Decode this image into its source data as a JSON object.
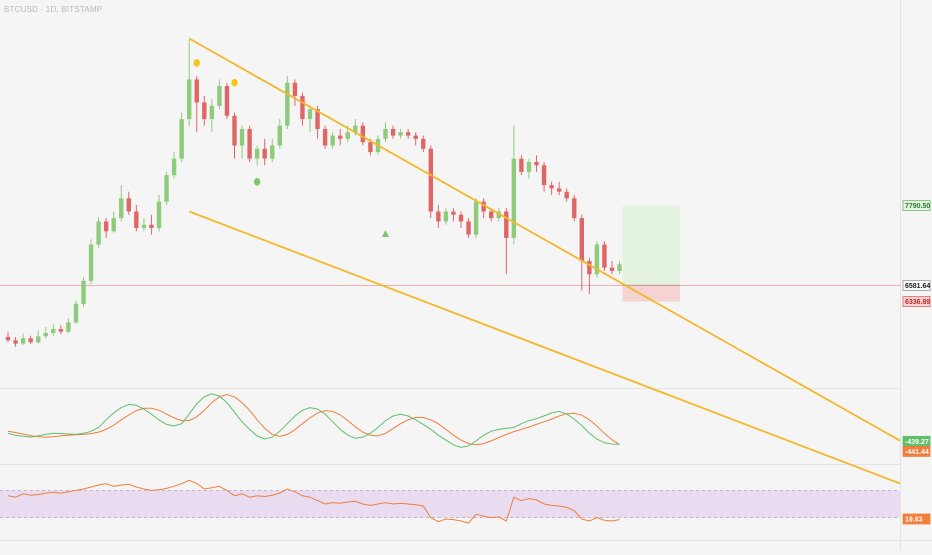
{
  "symbol_title": "BTCUSD · 1D, BITSTAMP",
  "colors": {
    "background": "#f5f5f5",
    "bull": "#8fcb7c",
    "bear": "#e06666",
    "channel": "#f5b728",
    "signal_circle": "#f5c518",
    "signal_green": "#7cc56a",
    "price_line": "#e89a9a",
    "target_zone": "#e3f3e0",
    "stop_zone": "#f6d3d3",
    "macd_line": "#5fbf6a",
    "signal_line": "#f07f3c",
    "rsi_line": "#f07f3c",
    "rsi_band": "#e9dcf0",
    "rsi_band_border": "#b9a4c8"
  },
  "price_panel": {
    "current_price_label": "6581.64",
    "target_label": "7790.50",
    "stop_label": "6336.89",
    "axis_tick_labels": []
  },
  "macd_panel": {
    "macd_value_label": "-439.27",
    "signal_value_label": "-441.44"
  },
  "rsi_panel": {
    "rsi_value_label": "19.63"
  },
  "chart_data": {
    "type": "candlestick",
    "title": "",
    "ylim": [
      5300,
      10600
    ],
    "candles": [
      [
        5800,
        5750,
        5880,
        5720
      ],
      [
        5750,
        5700,
        5800,
        5650
      ],
      [
        5700,
        5780,
        5850,
        5680
      ],
      [
        5780,
        5720,
        5820,
        5690
      ],
      [
        5720,
        5810,
        5900,
        5700
      ],
      [
        5810,
        5860,
        5950,
        5780
      ],
      [
        5860,
        5920,
        5990,
        5820
      ],
      [
        5920,
        5880,
        5980,
        5840
      ],
      [
        5880,
        6020,
        6080,
        5860
      ],
      [
        6020,
        6300,
        6350,
        6000
      ],
      [
        6300,
        6650,
        6700,
        6250
      ],
      [
        6650,
        7200,
        7280,
        6600
      ],
      [
        7200,
        7550,
        7620,
        7150
      ],
      [
        7550,
        7400,
        7600,
        7300
      ],
      [
        7400,
        7600,
        7700,
        7380
      ],
      [
        7600,
        7900,
        8100,
        7550
      ],
      [
        7900,
        7700,
        8000,
        7650
      ],
      [
        7700,
        7450,
        7800,
        7400
      ],
      [
        7450,
        7500,
        7600,
        7400
      ],
      [
        7500,
        7450,
        7650,
        7350
      ],
      [
        7450,
        7850,
        7950,
        7400
      ],
      [
        7850,
        8250,
        8300,
        7800
      ],
      [
        8250,
        8500,
        8600,
        8200
      ],
      [
        8500,
        9100,
        9200,
        8450
      ],
      [
        9100,
        9700,
        10300,
        9000
      ],
      [
        9700,
        9350,
        9750,
        8900
      ],
      [
        9350,
        9100,
        9450,
        9000
      ],
      [
        9100,
        9300,
        9400,
        8900
      ],
      [
        9300,
        9600,
        9700,
        9250
      ],
      [
        9600,
        9150,
        9650,
        9100
      ],
      [
        9150,
        8700,
        9200,
        8500
      ],
      [
        8700,
        8950,
        9000,
        8500
      ],
      [
        8950,
        8500,
        9000,
        8450
      ],
      [
        8500,
        8650,
        8700,
        8400
      ],
      [
        8650,
        8500,
        8800,
        8400
      ],
      [
        8500,
        8700,
        8800,
        8450
      ],
      [
        8700,
        9000,
        9100,
        8650
      ],
      [
        9000,
        9650,
        9750,
        8950
      ],
      [
        9650,
        9450,
        9700,
        9300
      ],
      [
        9450,
        9100,
        9500,
        9000
      ],
      [
        9100,
        9250,
        9300,
        8900
      ],
      [
        9250,
        8950,
        9300,
        8800
      ],
      [
        8950,
        8700,
        9000,
        8650
      ],
      [
        8700,
        8850,
        8900,
        8650
      ],
      [
        8850,
        8800,
        8950,
        8700
      ],
      [
        8800,
        8900,
        9000,
        8750
      ],
      [
        8900,
        9000,
        9100,
        8850
      ],
      [
        9000,
        8750,
        9050,
        8700
      ],
      [
        8750,
        8600,
        8800,
        8550
      ],
      [
        8600,
        8800,
        8850,
        8550
      ],
      [
        8800,
        8950,
        9050,
        8750
      ],
      [
        8950,
        8850,
        9000,
        8800
      ],
      [
        8850,
        8900,
        8950,
        8800
      ],
      [
        8900,
        8850,
        8950,
        8800
      ],
      [
        8850,
        8800,
        8900,
        8700
      ],
      [
        8800,
        8650,
        8850,
        8600
      ],
      [
        8650,
        7700,
        8700,
        7600
      ],
      [
        7700,
        7550,
        7800,
        7450
      ],
      [
        7550,
        7700,
        7750,
        7500
      ],
      [
        7700,
        7650,
        7750,
        7550
      ],
      [
        7650,
        7550,
        7700,
        7450
      ],
      [
        7550,
        7350,
        7600,
        7300
      ],
      [
        7350,
        7850,
        7900,
        7300
      ],
      [
        7850,
        7700,
        7900,
        7600
      ],
      [
        7700,
        7600,
        7750,
        7550
      ],
      [
        7600,
        7700,
        7750,
        7550
      ],
      [
        7700,
        7300,
        7750,
        6750
      ],
      [
        7300,
        8500,
        9000,
        7200
      ],
      [
        8500,
        8300,
        8550,
        8250
      ],
      [
        8300,
        8450,
        8500,
        8200
      ],
      [
        8450,
        8400,
        8550,
        8300
      ],
      [
        8400,
        8100,
        8450,
        8000
      ],
      [
        8100,
        8050,
        8150,
        7950
      ],
      [
        8050,
        8000,
        8150,
        7950
      ],
      [
        8000,
        7900,
        8050,
        7850
      ],
      [
        7900,
        7600,
        7950,
        7550
      ],
      [
        7600,
        6950,
        7650,
        6500
      ],
      [
        6950,
        6750,
        7000,
        6450
      ],
      [
        6750,
        7200,
        7250,
        6700
      ],
      [
        7200,
        6850,
        7250,
        6800
      ],
      [
        6850,
        6800,
        6950,
        6750
      ],
      [
        6800,
        6900,
        6950,
        6750
      ]
    ],
    "channel": {
      "upper": [
        [
          24,
          10320
        ],
        [
          88,
          6180
        ]
      ],
      "lower": [
        [
          24,
          7700
        ],
        [
          88,
          4900
        ]
      ]
    },
    "current_price": 6581.64,
    "target_price": 7790.5,
    "stop_price": 6336.89,
    "signals": [
      {
        "kind": "circle",
        "color": "yellow",
        "index": 25,
        "price": 9950
      },
      {
        "kind": "circle",
        "color": "yellow",
        "index": 30,
        "price": 9650
      },
      {
        "kind": "circle",
        "color": "green",
        "index": 33,
        "price": 8150
      },
      {
        "kind": "triangle",
        "color": "green",
        "index": 50,
        "price": 7360
      }
    ],
    "macd": {
      "ylim": [
        -900,
        900
      ],
      "macd": [
        -150,
        -200,
        -230,
        -250,
        -220,
        -180,
        -150,
        -160,
        -170,
        -180,
        -150,
        -100,
        0,
        200,
        380,
        520,
        600,
        580,
        480,
        350,
        200,
        80,
        40,
        100,
        350,
        620,
        800,
        880,
        820,
        650,
        400,
        150,
        -50,
        -220,
        -300,
        -250,
        -100,
        100,
        300,
        450,
        520,
        480,
        350,
        150,
        -50,
        -200,
        -280,
        -250,
        -150,
        0,
        180,
        300,
        350,
        300,
        200,
        80,
        -50,
        -200,
        -330,
        -450,
        -520,
        -480,
        -350,
        -200,
        -100,
        -50,
        -20,
        0,
        100,
        180,
        230,
        300,
        380,
        420,
        350,
        220,
        50,
        -150,
        -300,
        -400,
        -430,
        -439
      ],
      "signal": [
        -100,
        -130,
        -170,
        -210,
        -240,
        -250,
        -240,
        -220,
        -200,
        -190,
        -180,
        -160,
        -120,
        -50,
        60,
        200,
        330,
        440,
        500,
        500,
        450,
        350,
        250,
        180,
        180,
        280,
        450,
        650,
        800,
        860,
        800,
        650,
        450,
        200,
        -20,
        -180,
        -230,
        -180,
        -60,
        100,
        250,
        380,
        440,
        420,
        330,
        180,
        20,
        -120,
        -200,
        -220,
        -150,
        -30,
        100,
        200,
        260,
        260,
        200,
        100,
        -50,
        -200,
        -330,
        -420,
        -450,
        -420,
        -350,
        -260,
        -180,
        -110,
        -50,
        10,
        80,
        150,
        220,
        300,
        360,
        370,
        320,
        200,
        40,
        -150,
        -320,
        -441
      ]
    },
    "rsi": {
      "ylim": [
        0,
        100
      ],
      "band": [
        30,
        70
      ],
      "values": [
        62,
        60,
        65,
        63,
        64,
        66,
        67,
        66,
        68,
        70,
        72,
        75,
        78,
        80,
        76,
        78,
        79,
        75,
        72,
        70,
        71,
        73,
        76,
        80,
        85,
        80,
        72,
        74,
        76,
        70,
        62,
        65,
        60,
        62,
        61,
        63,
        66,
        72,
        68,
        62,
        60,
        55,
        50,
        52,
        51,
        53,
        54,
        50,
        48,
        50,
        52,
        50,
        51,
        50,
        49,
        47,
        30,
        24,
        28,
        27,
        25,
        22,
        35,
        32,
        30,
        31,
        25,
        60,
        55,
        58,
        56,
        50,
        48,
        47,
        45,
        40,
        28,
        25,
        30,
        26,
        25,
        27
      ]
    }
  }
}
